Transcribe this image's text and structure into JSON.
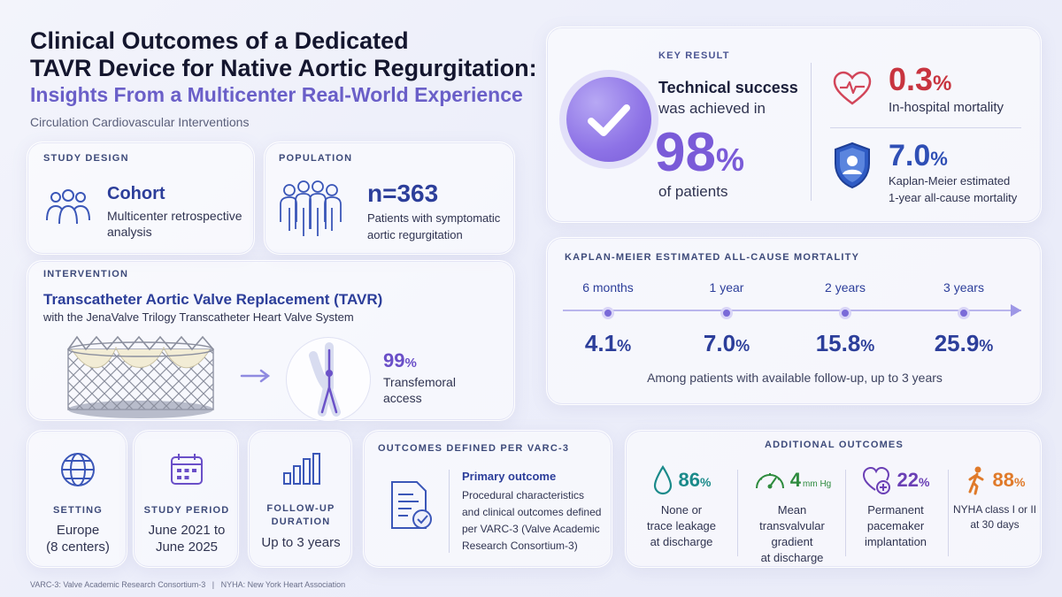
{
  "header": {
    "title_line1": "Clinical Outcomes of a Dedicated",
    "title_line2": "TAVR Device for Native Aortic Regurgitation:",
    "subtitle": "Insights From a Multicenter Real-World Experience",
    "journal": "Circulation Cardiovascular Interventions"
  },
  "key_result": {
    "label": "KEY RESULT",
    "line1": "Technical success",
    "line2": "was achieved in",
    "value": "98",
    "unit": "%",
    "line3": "of patients",
    "icon": "check-icon",
    "secondary": [
      {
        "value": "0.3",
        "unit": "%",
        "label": "In-hospital mortality",
        "color": "#c8343f",
        "icon": "heart-pulse-icon"
      },
      {
        "value": "7.0",
        "unit": "%",
        "label_line1": "Kaplan-Meier estimated",
        "label_line2": "1-year all-cause mortality",
        "color": "#2f4fb5",
        "icon": "shield-user-icon"
      }
    ]
  },
  "study_design": {
    "label": "STUDY DESIGN",
    "title": "Cohort",
    "desc_line1": "Multicenter retrospective",
    "desc_line2": "analysis",
    "icon": "people-icon"
  },
  "population": {
    "label": "POPULATION",
    "title": "n=363",
    "desc_line1": "Patients with symptomatic",
    "desc_line2": "aortic regurgitation",
    "icon": "group-icon"
  },
  "intervention": {
    "label": "INTERVENTION",
    "title": "Transcatheter Aortic Valve Replacement (TAVR)",
    "subtitle": "with the JenaValve Trilogy Transcatheter Heart Valve System",
    "access_value": "99",
    "access_unit": "%",
    "access_line1": "Transfemoral",
    "access_line2": "access"
  },
  "km": {
    "label": "KAPLAN-MEIER ESTIMATED ALL-CAUSE MORTALITY",
    "points": [
      {
        "num": "6",
        "period": "months",
        "value": "4.1",
        "unit": "%"
      },
      {
        "num": "1",
        "period": "year",
        "value": "7.0",
        "unit": "%"
      },
      {
        "num": "2",
        "period": "years",
        "value": "15.8",
        "unit": "%"
      },
      {
        "num": "3",
        "period": "years",
        "value": "25.9",
        "unit": "%"
      }
    ],
    "note": "Among patients with available follow-up, up to 3 years"
  },
  "setting": {
    "label": "SETTING",
    "line1": "Europe",
    "line2": "(8 centers)",
    "icon": "globe-icon"
  },
  "period": {
    "label": "STUDY PERIOD",
    "line1": "June 2021 to",
    "line2": "June 2025",
    "icon": "calendar-icon"
  },
  "followup": {
    "label_line1": "FOLLOW-UP",
    "label_line2": "DURATION",
    "line1": "Up to 3 years",
    "icon": "bar-chart-icon"
  },
  "outcomes_def": {
    "label": "OUTCOMES DEFINED PER VARC-3",
    "primary": "Primary outcome",
    "lines": [
      "Procedural characteristics",
      "and clinical outcomes defined",
      "per VARC-3 (Valve Academic",
      "Research Consortium-3)"
    ],
    "icon": "document-check-icon"
  },
  "additional": {
    "label": "ADDITIONAL OUTCOMES",
    "items": [
      {
        "value": "86",
        "unit": "%",
        "lines": [
          "None or",
          "trace leakage",
          "at discharge"
        ],
        "color": "#1a8a8a",
        "icon": "droplet-icon"
      },
      {
        "value": "4",
        "unit": "mm Hg",
        "lines": [
          "Mean",
          "transvalvular",
          "gradient",
          "at discharge"
        ],
        "color": "#2e8b3e",
        "icon": "gauge-icon"
      },
      {
        "value": "22",
        "unit": "%",
        "lines": [
          "Permanent",
          "pacemaker",
          "implantation"
        ],
        "color": "#6a3fb5",
        "icon": "heart-plus-icon"
      },
      {
        "value": "88",
        "unit": "%",
        "lines": [
          "NYHA class I or II",
          "at 30 days"
        ],
        "color": "#e07a2a",
        "icon": "walking-person-icon"
      }
    ]
  },
  "footer": "VARC-3: Valve Academic Research Consortium-3   |   NYHA: New York Heart Association"
}
